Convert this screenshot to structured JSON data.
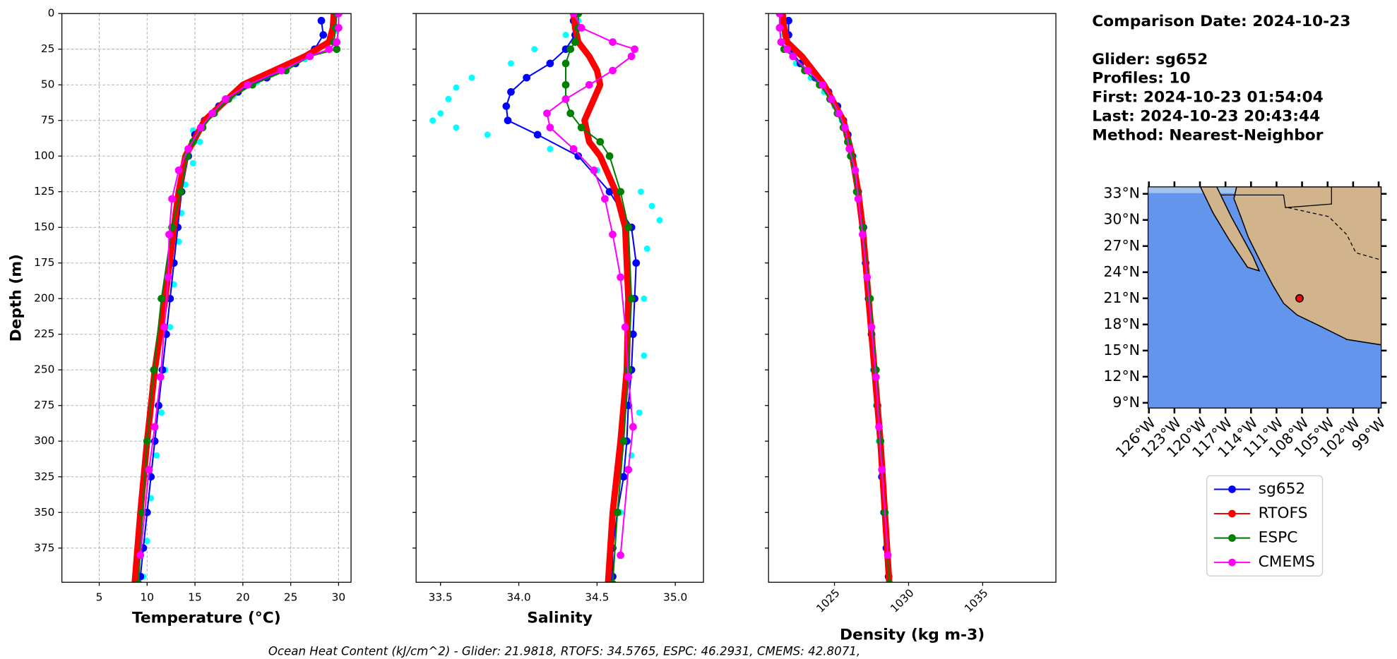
{
  "chart_data": [
    {
      "type": "line",
      "xlabel": "Temperature (°C)",
      "ylabel": "Depth (m)",
      "grid": true,
      "xlim": [
        1.1,
        31.3
      ],
      "xticks": [
        5,
        10,
        15,
        20,
        25,
        30
      ],
      "ylim": [
        399,
        0
      ],
      "yticks": [
        0,
        25,
        50,
        75,
        100,
        125,
        150,
        175,
        200,
        225,
        250,
        275,
        300,
        325,
        350,
        375
      ],
      "raw": {
        "color": "#00ffff",
        "depth": [
          3,
          12,
          22,
          32,
          40,
          48,
          58,
          68,
          78,
          82,
          90,
          105,
          120,
          140,
          160,
          190,
          220,
          250,
          280,
          310,
          340,
          370,
          395
        ],
        "values": [
          29.5,
          29.8,
          28.8,
          26.5,
          24,
          21.5,
          19,
          17.2,
          15.8,
          14.8,
          15.5,
          14.8,
          14,
          13.6,
          13.3,
          12.8,
          12.4,
          11.9,
          11.5,
          11,
          10.4,
          10,
          9.6
        ]
      },
      "series": [
        {
          "name": "sg652",
          "color": "#0000ff",
          "depth": [
            5,
            15,
            25,
            35,
            45,
            55,
            65,
            75,
            85,
            100,
            125,
            150,
            175,
            200,
            225,
            250,
            275,
            300,
            325,
            350,
            375,
            395
          ],
          "values": [
            28.2,
            28.4,
            27.5,
            25.5,
            22.5,
            19.5,
            17.5,
            16,
            15,
            14.3,
            13.6,
            13.2,
            12.8,
            12.4,
            12,
            11.6,
            11.2,
            10.8,
            10.4,
            10,
            9.6,
            9.3
          ]
        },
        {
          "name": "RTOFS",
          "color": "#ff0000",
          "depth": [
            0,
            10,
            20,
            30,
            50,
            75,
            100,
            125,
            150,
            200,
            250,
            300,
            350,
            400
          ],
          "values": [
            29.5,
            29.4,
            29.0,
            26.5,
            20,
            16,
            14,
            13.3,
            12.8,
            11.9,
            10.8,
            10,
            9.3,
            8.7
          ]
        },
        {
          "name": "ESPC",
          "color": "#008000",
          "depth": [
            0,
            10,
            20,
            25,
            30,
            40,
            50,
            60,
            70,
            80,
            90,
            100,
            125,
            150,
            200,
            250,
            300,
            350,
            400
          ],
          "values": [
            29.8,
            29.7,
            29.5,
            29.8,
            27,
            24.5,
            21,
            18.5,
            17,
            15.8,
            14.8,
            14.2,
            13.5,
            12.6,
            11.5,
            10.7,
            10,
            9.5,
            9.1
          ]
        },
        {
          "name": "CMEMS",
          "color": "#ff00ff",
          "depth": [
            0,
            10,
            20,
            25,
            30,
            40,
            50,
            60,
            70,
            80,
            95,
            110,
            130,
            155,
            185,
            220,
            255,
            290,
            320,
            380
          ],
          "values": [
            30,
            30,
            29.8,
            29,
            27,
            24,
            20.5,
            18.2,
            16.8,
            15.6,
            14.3,
            13.3,
            12.6,
            12.3,
            12.2,
            11.8,
            11.4,
            10.8,
            10.2,
            9.3
          ]
        }
      ]
    },
    {
      "type": "line",
      "xlabel": "Salinity",
      "grid": false,
      "xlim": [
        33.344,
        35.18
      ],
      "xticks": [
        {
          "value": 33.5,
          "label": "33.5"
        },
        {
          "value": 34,
          "label": "34.0"
        },
        {
          "value": 34.5,
          "label": "34.5"
        },
        {
          "value": 35,
          "label": "35.0"
        }
      ],
      "ylim": [
        399,
        0
      ],
      "yticks": [
        0,
        25,
        50,
        75,
        100,
        125,
        150,
        175,
        200,
        225,
        250,
        275,
        300,
        325,
        350,
        375
      ],
      "raw": {
        "color": "#00ffff",
        "depth": [
          5,
          15,
          25,
          35,
          45,
          52,
          60,
          70,
          75,
          80,
          85,
          95,
          110,
          125,
          135,
          145,
          165,
          200,
          240,
          280,
          310,
          350,
          385
        ],
        "values": [
          34.38,
          34.3,
          34.1,
          33.95,
          33.7,
          33.6,
          33.55,
          33.5,
          33.45,
          33.6,
          33.8,
          34.2,
          34.5,
          34.78,
          34.85,
          34.9,
          34.82,
          34.8,
          34.8,
          34.77,
          34.72,
          34.65,
          34.58
        ]
      },
      "series": [
        {
          "name": "sg652",
          "color": "#0000ff",
          "depth": [
            5,
            15,
            25,
            35,
            45,
            55,
            65,
            75,
            85,
            100,
            125,
            150,
            175,
            200,
            225,
            250,
            275,
            300,
            325,
            350,
            375,
            395
          ],
          "values": [
            34.35,
            34.36,
            34.3,
            34.2,
            34.05,
            33.95,
            33.92,
            33.93,
            34.12,
            34.38,
            34.58,
            34.72,
            34.75,
            34.74,
            34.73,
            34.72,
            34.7,
            34.69,
            34.67,
            34.63,
            34.6,
            34.6
          ]
        },
        {
          "name": "RTOFS",
          "color": "#ff0000",
          "depth": [
            0,
            10,
            20,
            30,
            40,
            50,
            60,
            75,
            90,
            100,
            125,
            150,
            200,
            250,
            300,
            350,
            400
          ],
          "values": [
            34.35,
            34.36,
            34.38,
            34.45,
            34.5,
            34.52,
            34.48,
            34.42,
            34.45,
            34.52,
            34.62,
            34.68,
            34.7,
            34.69,
            34.65,
            34.6,
            34.57
          ]
        },
        {
          "name": "ESPC",
          "color": "#008000",
          "depth": [
            0,
            10,
            20,
            25,
            35,
            50,
            60,
            70,
            80,
            90,
            100,
            125,
            150,
            200,
            250,
            300,
            350,
            400
          ],
          "values": [
            34.38,
            34.38,
            34.36,
            34.33,
            34.3,
            34.3,
            34.3,
            34.33,
            34.4,
            34.52,
            34.58,
            34.65,
            34.7,
            34.72,
            34.7,
            34.67,
            34.63,
            34.6
          ]
        },
        {
          "name": "CMEMS",
          "color": "#ff00ff",
          "depth": [
            0,
            10,
            20,
            25,
            30,
            40,
            50,
            60,
            70,
            80,
            95,
            110,
            130,
            155,
            185,
            220,
            255,
            290,
            320,
            380
          ],
          "values": [
            34.35,
            34.4,
            34.6,
            34.74,
            34.72,
            34.6,
            34.45,
            34.3,
            34.18,
            34.2,
            34.35,
            34.48,
            34.55,
            34.6,
            34.65,
            34.68,
            34.7,
            34.73,
            34.7,
            34.65
          ]
        }
      ]
    },
    {
      "type": "line",
      "xlabel": "Density (kg m-3)",
      "grid": false,
      "xlim": [
        1020.55,
        1039.94
      ],
      "xticks": [
        1025,
        1030,
        1035
      ],
      "ylim": [
        399,
        0
      ],
      "yticks": [
        0,
        25,
        50,
        75,
        100,
        125,
        150,
        175,
        200,
        225,
        250,
        275,
        300,
        325,
        350,
        375
      ],
      "raw": {
        "color": "#00ffff",
        "depth": [
          5,
          15,
          25,
          35,
          45,
          55,
          65,
          75,
          85,
          100,
          125,
          150,
          175,
          200,
          225,
          250,
          275,
          300,
          325,
          350,
          375,
          395
        ],
        "values": [
          1021.5,
          1021.6,
          1021.9,
          1022.4,
          1023.4,
          1024.3,
          1025,
          1025.5,
          1025.8,
          1026.3,
          1026.6,
          1026.9,
          1027.1,
          1027.3,
          1027.5,
          1027.6,
          1027.8,
          1028,
          1028.2,
          1028.3,
          1028.5,
          1028.7
        ]
      },
      "series": [
        {
          "name": "sg652",
          "color": "#0000ff",
          "depth": [
            5,
            15,
            25,
            35,
            45,
            55,
            65,
            75,
            85,
            100,
            125,
            150,
            175,
            200,
            225,
            250,
            275,
            300,
            325,
            350,
            375,
            395
          ],
          "values": [
            1021.9,
            1021.9,
            1022.0,
            1022.7,
            1023.7,
            1024.6,
            1025.2,
            1025.6,
            1025.9,
            1026.2,
            1026.6,
            1026.95,
            1027.1,
            1027.3,
            1027.5,
            1027.7,
            1027.9,
            1028.1,
            1028.2,
            1028.35,
            1028.5,
            1028.65
          ]
        },
        {
          "name": "RTOFS",
          "color": "#ff0000",
          "depth": [
            0,
            10,
            20,
            30,
            50,
            75,
            100,
            125,
            150,
            200,
            250,
            300,
            350,
            400
          ],
          "values": [
            1021.5,
            1021.6,
            1021.8,
            1022.8,
            1024.3,
            1025.6,
            1026.2,
            1026.6,
            1026.9,
            1027.3,
            1027.7,
            1028.1,
            1028.4,
            1028.7
          ]
        },
        {
          "name": "ESPC",
          "color": "#008000",
          "depth": [
            0,
            10,
            20,
            25,
            30,
            40,
            50,
            60,
            70,
            80,
            90,
            100,
            125,
            150,
            200,
            250,
            300,
            350,
            400
          ],
          "values": [
            1021.3,
            1021.3,
            1021.4,
            1021.6,
            1022.2,
            1023,
            1024,
            1024.7,
            1025.2,
            1025.6,
            1025.9,
            1026.1,
            1026.5,
            1026.9,
            1027.4,
            1027.8,
            1028.1,
            1028.4,
            1028.7
          ]
        },
        {
          "name": "CMEMS",
          "color": "#ff00ff",
          "depth": [
            0,
            10,
            20,
            25,
            30,
            40,
            50,
            60,
            70,
            80,
            95,
            110,
            130,
            155,
            185,
            220,
            255,
            290,
            320,
            380
          ],
          "values": [
            1021.3,
            1021.3,
            1021.4,
            1021.8,
            1022.2,
            1023.2,
            1024.2,
            1024.8,
            1025.3,
            1025.7,
            1026,
            1026.4,
            1026.6,
            1026.9,
            1027.2,
            1027.5,
            1027.8,
            1028,
            1028.2,
            1028.6
          ]
        }
      ]
    }
  ],
  "info": [
    "Comparison Date: 2024-10-23",
    "Glider: sg652",
    "Profiles: 10",
    "First: 2024-10-23 01:54:04",
    "Last: 2024-10-23 20:43:44",
    "Method: Nearest-Neighbor"
  ],
  "footer": "Ocean Heat Content (kJ/cm^2) - Glider: 21.9818,  RTOFS: 34.5765,  ESPC: 46.2931,  CMEMS: 42.8071,",
  "map": {
    "xlim": [
      -126.1,
      -98.7
    ],
    "ylim": [
      8.4,
      33.8
    ],
    "xticks": [
      {
        "value": -126,
        "label": "126°W"
      },
      {
        "value": -123,
        "label": "123°W"
      },
      {
        "value": -120,
        "label": "120°W"
      },
      {
        "value": -117,
        "label": "117°W"
      },
      {
        "value": -114,
        "label": "114°W"
      },
      {
        "value": -111,
        "label": "111°W"
      },
      {
        "value": -108,
        "label": "108°W"
      },
      {
        "value": -105,
        "label": "105°W"
      },
      {
        "value": -102,
        "label": "102°W"
      },
      {
        "value": -99,
        "label": "99°W"
      }
    ],
    "yticks": [
      {
        "value": 33,
        "label": "33°N"
      },
      {
        "value": 30,
        "label": "30°N"
      },
      {
        "value": 27,
        "label": "27°N"
      },
      {
        "value": 24,
        "label": "24°N"
      },
      {
        "value": 21,
        "label": "21°N"
      },
      {
        "value": 18,
        "label": "18°N"
      },
      {
        "value": 15,
        "label": "15°N"
      },
      {
        "value": 12,
        "label": "12°N"
      },
      {
        "value": 9,
        "label": "9°N"
      }
    ],
    "glider": {
      "lon": -108.3,
      "lat": 21.0,
      "color": "#ff0000"
    }
  }
}
